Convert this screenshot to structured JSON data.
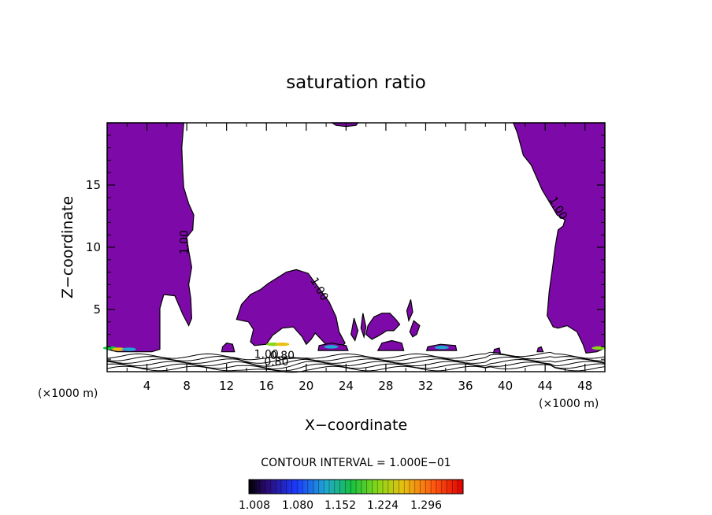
{
  "chart_data": {
    "type": "contour",
    "title": "saturation ratio",
    "xlabel": "X−coordinate",
    "ylabel": "Z−coordinate",
    "x_unit": "(×1000 m)",
    "y_unit": "(×1000 m)",
    "xlim": [
      0,
      50
    ],
    "ylim": [
      0,
      20
    ],
    "xticks": [
      4,
      8,
      12,
      16,
      20,
      24,
      28,
      32,
      36,
      40,
      44,
      48
    ],
    "yticks": [
      5,
      10,
      15
    ],
    "contour_interval": "CONTOUR INTERVAL = 1.000E−01",
    "contour_labels": [
      "1.00",
      "1.00",
      "1.00",
      "1.00",
      "0.80",
      "0.80"
    ],
    "colorbar_ticks": [
      "1.008",
      "1.080",
      "1.152",
      "1.224",
      "1.296"
    ],
    "fill_color": "#7d0aa8",
    "regions": [
      {
        "name": "left-column",
        "points": [
          [
            0,
            20
          ],
          [
            7.7,
            20
          ],
          [
            7.5,
            18
          ],
          [
            7.6,
            16
          ],
          [
            7.7,
            14.8
          ],
          [
            8.2,
            13.5
          ],
          [
            8.7,
            12.6
          ],
          [
            8.6,
            11.4
          ],
          [
            8.0,
            10.8
          ],
          [
            8.2,
            9.7
          ],
          [
            8.5,
            8.4
          ],
          [
            8.2,
            7.0
          ],
          [
            8.4,
            5.9
          ],
          [
            8.5,
            4.3
          ],
          [
            8.2,
            3.7
          ],
          [
            7.6,
            4.6
          ],
          [
            6.8,
            6.1
          ],
          [
            5.7,
            6.2
          ],
          [
            5.3,
            5.1
          ],
          [
            5.3,
            1.8
          ],
          [
            4.5,
            1.6
          ],
          [
            2.5,
            1.6
          ],
          [
            1,
            1.6
          ],
          [
            0,
            1.8
          ]
        ]
      },
      {
        "name": "right-column",
        "points": [
          [
            50,
            20
          ],
          [
            40.8,
            20
          ],
          [
            41.2,
            19.2
          ],
          [
            41.8,
            17.4
          ],
          [
            42.6,
            16.6
          ],
          [
            43.7,
            14.6
          ],
          [
            44.3,
            13.8
          ],
          [
            45.2,
            12.6
          ],
          [
            46.0,
            12.2
          ],
          [
            45.8,
            11.7
          ],
          [
            45.3,
            11.4
          ],
          [
            45.0,
            10.0
          ],
          [
            44.8,
            8.7
          ],
          [
            44.4,
            6.4
          ],
          [
            44.2,
            4.5
          ],
          [
            44.8,
            3.6
          ],
          [
            45.3,
            3.5
          ],
          [
            46.2,
            3.7
          ],
          [
            47.2,
            3.2
          ],
          [
            47.8,
            2.2
          ],
          [
            48.1,
            1.5
          ],
          [
            49.2,
            1.6
          ],
          [
            50,
            1.9
          ]
        ]
      },
      {
        "name": "central-blob",
        "points": [
          [
            13.0,
            4.2
          ],
          [
            13.5,
            5.4
          ],
          [
            14.4,
            6.2
          ],
          [
            15.4,
            6.6
          ],
          [
            16.2,
            7.1
          ],
          [
            17.0,
            7.5
          ],
          [
            18.0,
            8.0
          ],
          [
            19.0,
            8.2
          ],
          [
            20.2,
            7.9
          ],
          [
            21.2,
            6.8
          ],
          [
            22.3,
            5.6
          ],
          [
            23.0,
            4.4
          ],
          [
            23.3,
            3.2
          ],
          [
            23.9,
            2.3
          ],
          [
            23.3,
            1.8
          ],
          [
            22.3,
            1.9
          ],
          [
            21.5,
            2.6
          ],
          [
            20.9,
            3.1
          ],
          [
            20.5,
            2.6
          ],
          [
            20.0,
            2.2
          ],
          [
            19.6,
            2.8
          ],
          [
            18.7,
            3.6
          ],
          [
            17.6,
            3.5
          ],
          [
            16.6,
            2.9
          ],
          [
            16.0,
            2.2
          ],
          [
            14.8,
            2.1
          ],
          [
            14.4,
            2.4
          ],
          [
            14.7,
            3.4
          ],
          [
            14.2,
            4.0
          ]
        ]
      },
      {
        "name": "right-blob",
        "points": [
          [
            26.2,
            3.7
          ],
          [
            26.8,
            4.4
          ],
          [
            27.6,
            4.7
          ],
          [
            28.4,
            4.7
          ],
          [
            29.0,
            4.2
          ],
          [
            29.4,
            3.8
          ],
          [
            28.8,
            3.3
          ],
          [
            28.1,
            3.3
          ],
          [
            27.3,
            2.9
          ],
          [
            26.6,
            2.6
          ],
          [
            26.0,
            3.0
          ]
        ]
      },
      {
        "name": "small-blob-a",
        "points": [
          [
            24.5,
            3.0
          ],
          [
            24.8,
            4.3
          ],
          [
            25.2,
            3.3
          ],
          [
            24.9,
            2.5
          ]
        ]
      },
      {
        "name": "small-blob-b",
        "points": [
          [
            25.5,
            3.5
          ],
          [
            25.7,
            4.7
          ],
          [
            26.0,
            3.6
          ],
          [
            25.8,
            2.8
          ]
        ]
      },
      {
        "name": "small-blob-c",
        "points": [
          [
            30.1,
            4.9
          ],
          [
            30.5,
            5.8
          ],
          [
            30.7,
            4.8
          ],
          [
            30.3,
            4.1
          ]
        ]
      },
      {
        "name": "small-blob-d",
        "points": [
          [
            30.4,
            3.2
          ],
          [
            30.8,
            4.1
          ],
          [
            31.4,
            3.7
          ],
          [
            31.1,
            3.0
          ],
          [
            30.7,
            2.8
          ]
        ]
      },
      {
        "name": "top-blob",
        "points": [
          [
            22.6,
            20
          ],
          [
            25.2,
            20
          ],
          [
            25.0,
            19.8
          ],
          [
            24.0,
            19.7
          ],
          [
            23.0,
            19.8
          ]
        ]
      },
      {
        "name": "bottom-strip-1",
        "points": [
          [
            11.5,
            1.6
          ],
          [
            12.8,
            1.6
          ],
          [
            12.6,
            2.2
          ],
          [
            12.0,
            2.3
          ],
          [
            11.6,
            2.0
          ]
        ]
      },
      {
        "name": "bottom-strip-2",
        "points": [
          [
            21.2,
            1.7
          ],
          [
            24.2,
            1.7
          ],
          [
            24.0,
            2.1
          ],
          [
            22.5,
            2.3
          ],
          [
            21.3,
            2.1
          ]
        ]
      },
      {
        "name": "bottom-strip-3",
        "points": [
          [
            27.2,
            1.7
          ],
          [
            29.8,
            1.7
          ],
          [
            29.6,
            2.3
          ],
          [
            28.6,
            2.5
          ],
          [
            27.6,
            2.3
          ]
        ]
      },
      {
        "name": "bottom-strip-4",
        "points": [
          [
            32.1,
            1.7
          ],
          [
            35.1,
            1.7
          ],
          [
            35.0,
            2.1
          ],
          [
            33.5,
            2.2
          ],
          [
            32.2,
            2.0
          ]
        ]
      },
      {
        "name": "bottom-strip-5",
        "points": [
          [
            38.8,
            1.5
          ],
          [
            39.5,
            1.5
          ],
          [
            39.4,
            1.9
          ],
          [
            38.9,
            1.8
          ]
        ]
      },
      {
        "name": "bottom-strip-6",
        "points": [
          [
            43.2,
            1.6
          ],
          [
            43.8,
            1.6
          ],
          [
            43.6,
            2.0
          ],
          [
            43.3,
            1.9
          ]
        ]
      }
    ]
  }
}
